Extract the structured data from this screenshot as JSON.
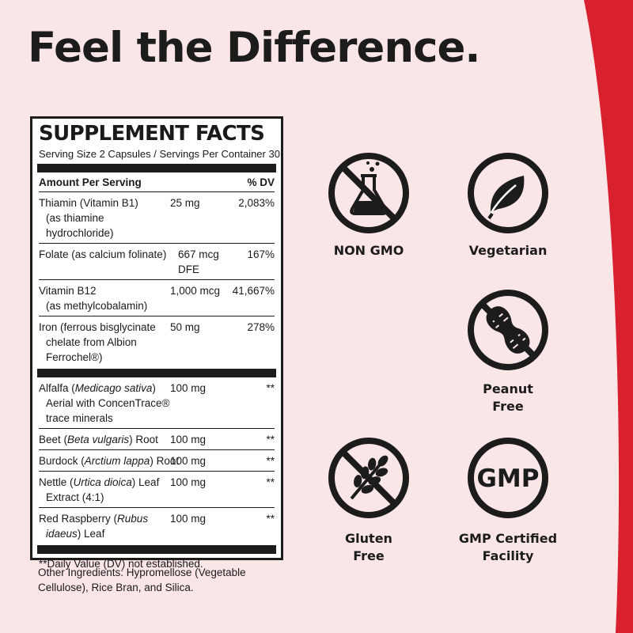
{
  "headline": "Feel the Difference.",
  "colors": {
    "background": "#fbe6e7",
    "accent_red": "#d8202f",
    "ink": "#1c1c1c"
  },
  "facts": {
    "title": "SUPPLEMENT FACTS",
    "serving": "Serving Size 2 Capsules / Servings Per Container 30",
    "col_amount": "Amount Per Serving",
    "col_dv": "% DV",
    "rows": [
      {
        "name": "Thiamin (Vitamin B1)",
        "sub": "(as thiamine hydrochloride)",
        "amount": "25 mg",
        "dv": "2,083%"
      },
      {
        "name": "Folate (as calcium folinate)",
        "sub": "",
        "amount": "667 mcg DFE",
        "dv": "167%"
      },
      {
        "name": "Vitamin B12",
        "sub": "(as methylcobalamin)",
        "amount": "1,000 mcg",
        "dv": "41,667%"
      },
      {
        "name": "Iron (ferrous bisglycinate",
        "sub": "chelate from Albion Ferrochel®)",
        "amount": "50 mg",
        "dv": "278%"
      }
    ],
    "herbs": [
      {
        "name_pre": "Alfalfa (",
        "latin": "Medicago sativa",
        "name_post": ")",
        "sub": "Aerial with ConcenTrace® trace minerals",
        "amount": "100 mg",
        "dv": "**"
      },
      {
        "name_pre": "Beet (",
        "latin": "Beta vulgaris",
        "name_post": ") Root",
        "sub": "",
        "amount": "100 mg",
        "dv": "**"
      },
      {
        "name_pre": "Burdock (",
        "latin": "Arctium lappa",
        "name_post": ") Root",
        "sub": "",
        "amount": "100 mg",
        "dv": "**"
      },
      {
        "name_pre": "Nettle (",
        "latin": "Urtica dioica",
        "name_post": ") Leaf",
        "sub": "Extract (4:1)",
        "amount": "100 mg",
        "dv": "**"
      },
      {
        "name_pre": "Red Raspberry (",
        "latin": "Rubus",
        "name_post": "",
        "sub_latin": "idaeus",
        "sub": ") Leaf",
        "amount": "100 mg",
        "dv": "**"
      }
    ],
    "footnote": "**Daily Value (DV) not established."
  },
  "other_ingredients": "Other Ingredients: Hypromellose (Vegetable Cellulose), Rice Bran, and Silica.",
  "badges": {
    "non_gmo": {
      "label": "NON GMO",
      "icon": "flask-icon"
    },
    "vegetarian": {
      "label": "Vegetarian",
      "icon": "leaf-icon"
    },
    "peanut_free": {
      "line1": "Peanut",
      "line2": "Free",
      "icon": "peanut-icon"
    },
    "gluten_free": {
      "line1": "Gluten",
      "line2": "Free",
      "icon": "wheat-icon"
    },
    "gmp": {
      "mark": "GMP",
      "line1": "GMP Certified",
      "line2": "Facility"
    }
  }
}
